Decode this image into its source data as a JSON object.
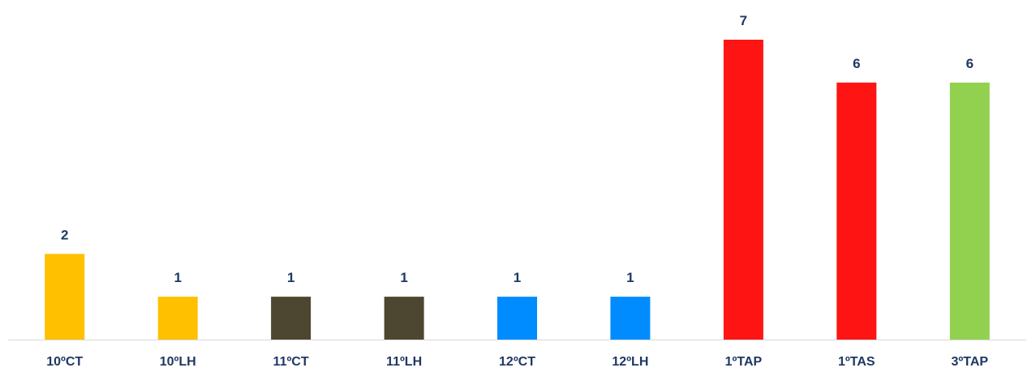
{
  "chart_data": {
    "type": "bar",
    "title": "",
    "xlabel": "",
    "ylabel": "",
    "categories": [
      "10ºCT",
      "10ºLH",
      "11ºCT",
      "11ºLH",
      "12ºCT",
      "12ºLH",
      "1ºTAP",
      "1ºTAS",
      "3ºTAP"
    ],
    "values": [
      2,
      1,
      1,
      1,
      1,
      1,
      7,
      6,
      6
    ],
    "colors": [
      "#ffc000",
      "#ffc000",
      "#4d4630",
      "#4d4630",
      "#008cff",
      "#008cff",
      "#ff1414",
      "#ff1414",
      "#92d050"
    ],
    "ylim": [
      0,
      7
    ],
    "grid": false,
    "legend": "none",
    "data_labels": true
  },
  "colors": {
    "label_text": "#1f3864",
    "axis_line": "#d9d9d9"
  }
}
